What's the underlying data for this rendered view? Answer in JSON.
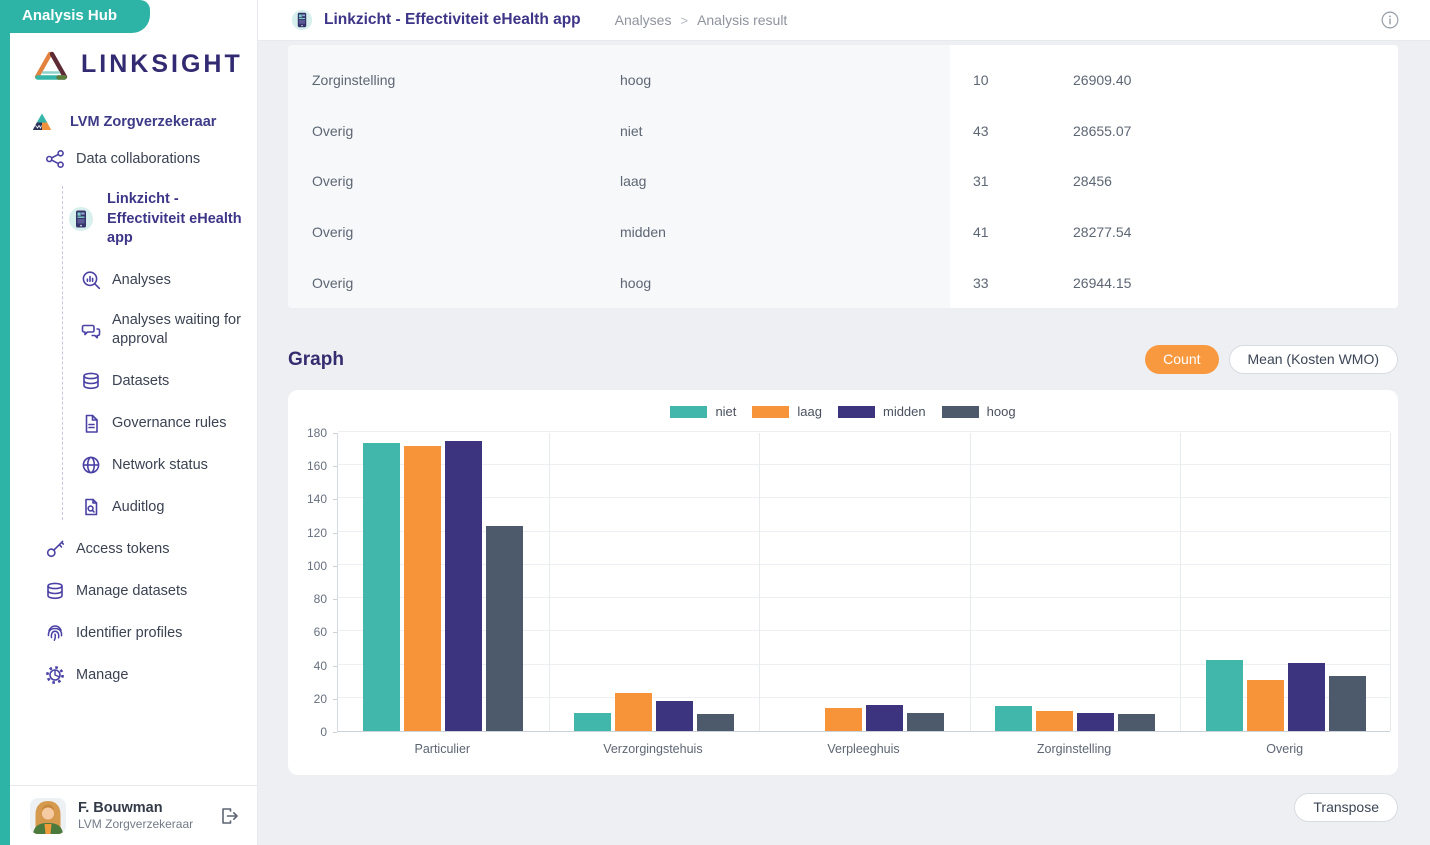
{
  "badge": {
    "label": "Analysis Hub"
  },
  "brand": {
    "name": "LINKSIGHT"
  },
  "sidebar": {
    "org": "LVM Zorgverzekeraar",
    "collaborations": "Data collaborations",
    "project": "Linkzicht - Effectiviteit eHealth app",
    "items": {
      "analyses": "Analyses",
      "waiting": "Analyses waiting for approval",
      "datasets": "Datasets",
      "governance": "Governance rules",
      "network": "Network status",
      "auditlog": "Auditlog",
      "access": "Access tokens",
      "manage_datasets": "Manage datasets",
      "identifier": "Identifier profiles",
      "manage": "Manage"
    },
    "user": {
      "name": "F. Bouwman",
      "org": "LVM Zorgverzekeraar"
    }
  },
  "header": {
    "title": "Linkzicht - Effectiviteit eHealth app",
    "crumb1": "Analyses",
    "crumb_sep": ">",
    "crumb2": "Analysis result"
  },
  "table": {
    "rows": [
      [
        "Zorginstelling",
        "hoog",
        "10",
        "26909.40"
      ],
      [
        "Overig",
        "niet",
        "43",
        "28655.07"
      ],
      [
        "Overig",
        "laag",
        "31",
        "28456"
      ],
      [
        "Overig",
        "midden",
        "41",
        "28277.54"
      ],
      [
        "Overig",
        "hoog",
        "33",
        "26944.15"
      ]
    ]
  },
  "graph": {
    "title": "Graph",
    "count_button": "Count",
    "mean_button": "Mean (Kosten WMO)",
    "transpose_button": "Transpose"
  },
  "colors": {
    "teal_brand": "#2eb4a7",
    "orange_accent": "#f8993f",
    "indigo_text": "#3d3588"
  },
  "chart_data": {
    "type": "bar",
    "title": "Graph",
    "categories": [
      "Particulier",
      "Verzorgingstehuis",
      "Verpleeghuis",
      "Zorginstelling",
      "Overig"
    ],
    "series": [
      {
        "name": "niet",
        "color": "#41b7ab",
        "values": [
          174,
          11,
          0,
          15,
          43
        ]
      },
      {
        "name": "laag",
        "color": "#f79439",
        "values": [
          172,
          23,
          14,
          12,
          31
        ]
      },
      {
        "name": "midden",
        "color": "#3d3480",
        "values": [
          175,
          18,
          16,
          11,
          41
        ]
      },
      {
        "name": "hoog",
        "color": "#4d5a6b",
        "values": [
          124,
          10,
          11,
          10,
          33
        ]
      }
    ],
    "xlabel": "",
    "ylabel": "",
    "ylim": [
      0,
      180
    ],
    "ytick_step": 20,
    "grid": true,
    "legend_position": "top"
  }
}
